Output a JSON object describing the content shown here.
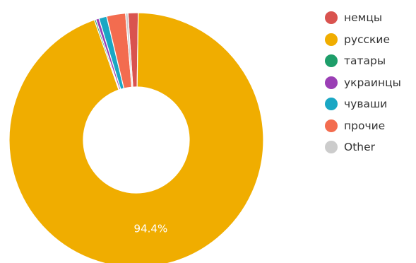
{
  "chart_data": {
    "type": "pie",
    "donut": true,
    "legend_position": "right",
    "slice_label_color": "#ffffff",
    "series": [
      {
        "name": "немцы",
        "value": 1.3,
        "color": "#d9534f"
      },
      {
        "name": "русские",
        "value": 94.4,
        "color": "#f0ad00",
        "label": "94.4%"
      },
      {
        "name": "татары",
        "value": 0.2,
        "color": "#1e9e6a"
      },
      {
        "name": "украинцы",
        "value": 0.4,
        "color": "#9b3fb5"
      },
      {
        "name": "чуваши",
        "value": 1.0,
        "color": "#1aa7c4"
      },
      {
        "name": "прочие",
        "value": 2.4,
        "color": "#f36c4f"
      },
      {
        "name": "Other",
        "value": 0.3,
        "color": "#cccccc"
      }
    ]
  }
}
